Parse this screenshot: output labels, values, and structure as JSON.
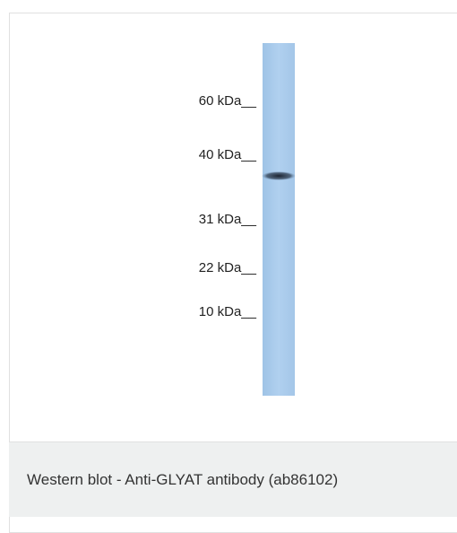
{
  "markers": [
    "60 kDa__",
    "40 kDa__",
    "31 kDa__",
    "22 kDa__",
    "10 kDa__"
  ],
  "caption": "Western blot - Anti-GLYAT antibody (ab86102)"
}
